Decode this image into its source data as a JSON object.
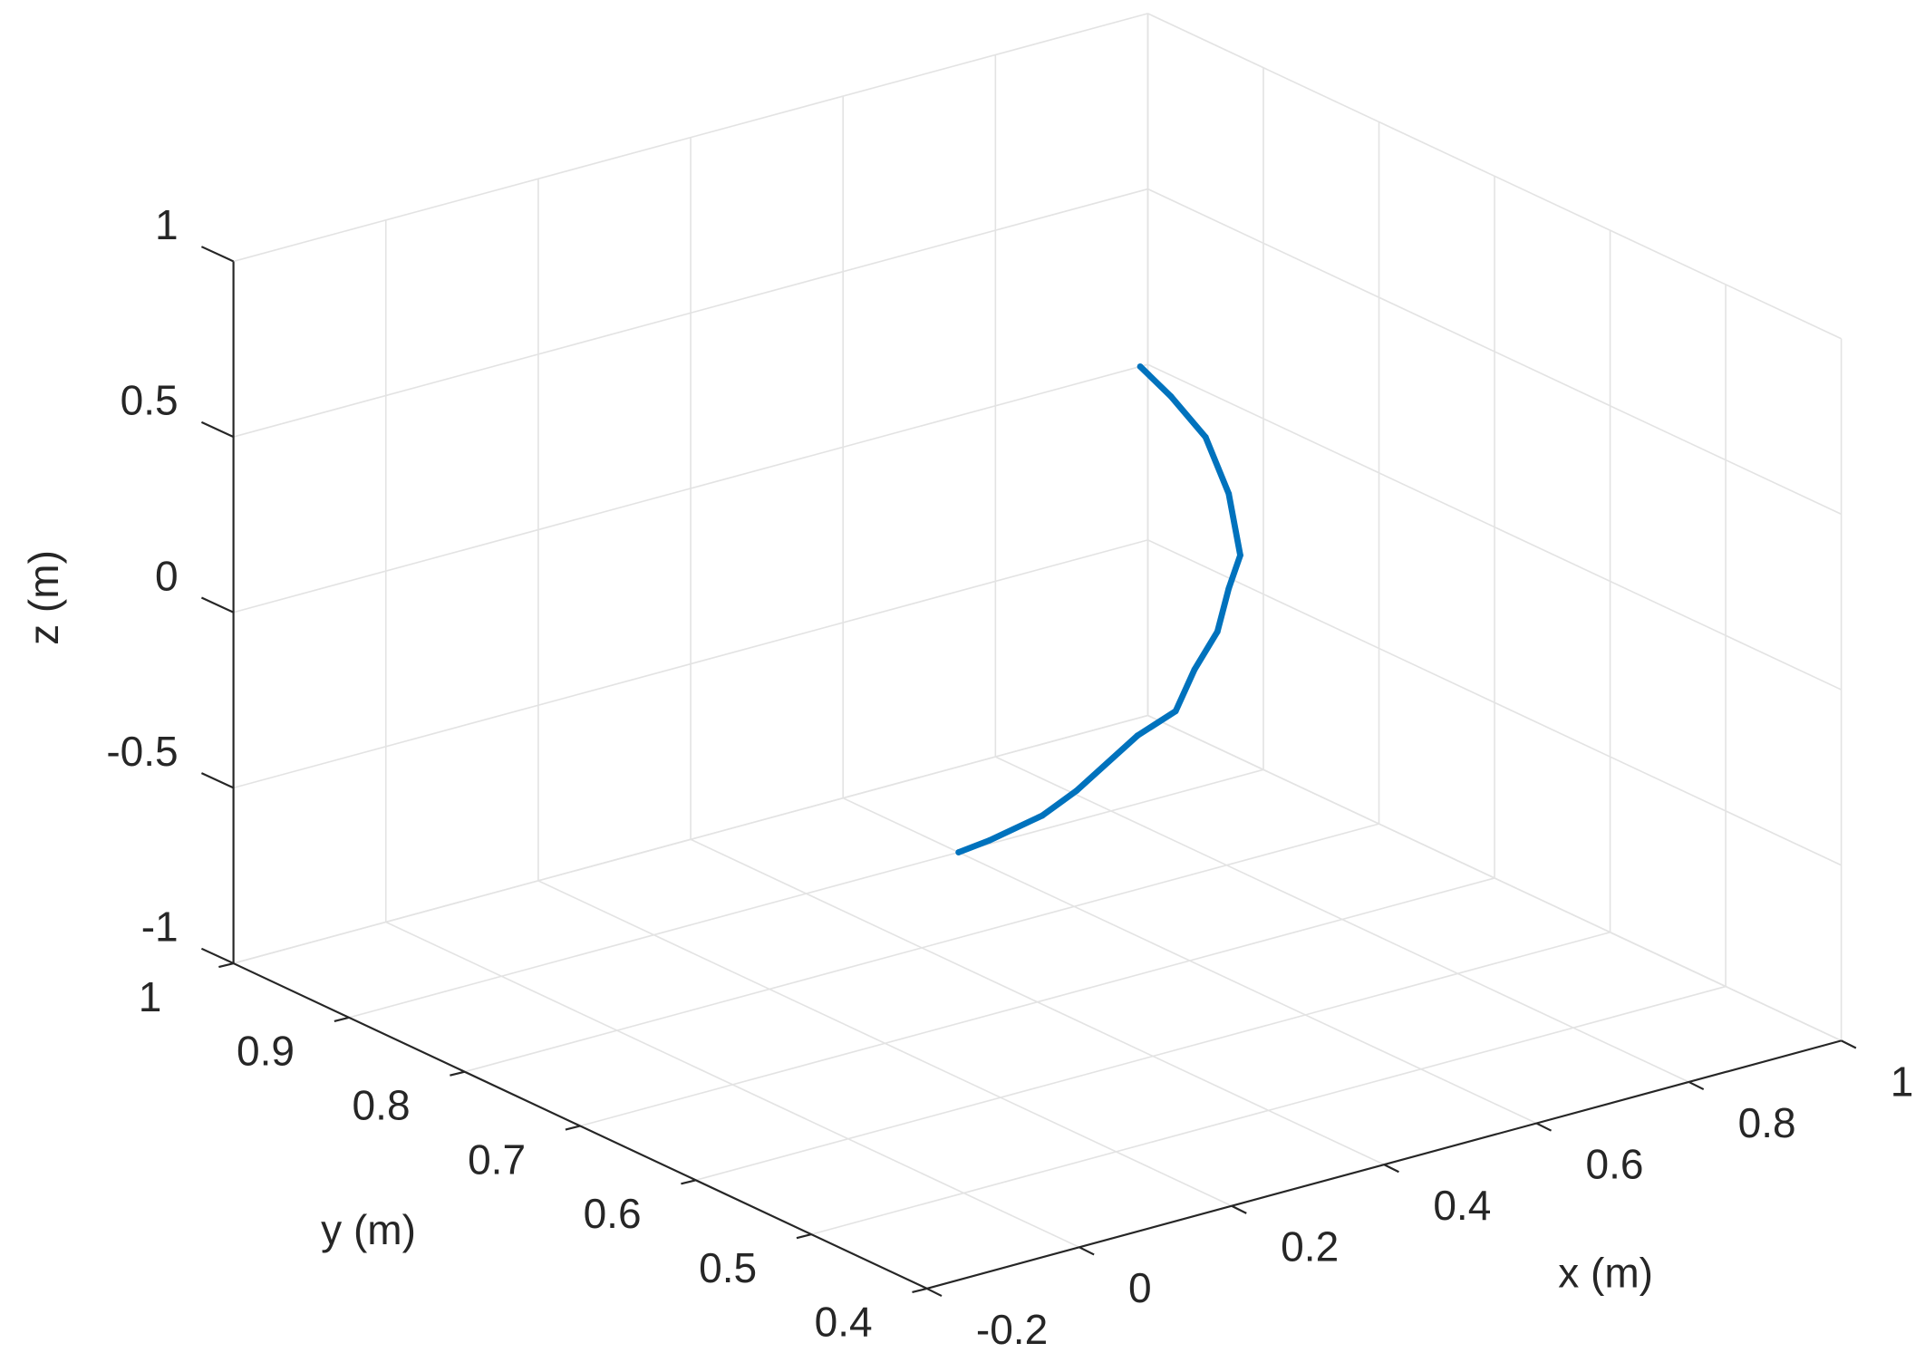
{
  "chart_data": {
    "type": "line3d",
    "x": [
      0.99,
      1,
      1,
      1,
      1,
      1,
      0.97,
      0.94,
      0.9,
      0.85,
      0.77,
      0.71,
      0.64,
      0.6
    ],
    "y": [
      1,
      0.98,
      0.95,
      0.93,
      0.92,
      0.93,
      0.92,
      0.92,
      0.91,
      0.91,
      0.91,
      0.9,
      0.9,
      0.9
    ],
    "z": [
      0,
      -0.06,
      -0.13,
      -0.26,
      -0.42,
      -0.53,
      -0.62,
      -0.71,
      -0.79,
      -0.83,
      -0.94,
      -0.96,
      -0.99,
      -1
    ],
    "color": "#0072bd",
    "xlabel": "x (m)",
    "ylabel": "y (m)",
    "zlabel": "z (m)",
    "xlim": [
      -0.2,
      1
    ],
    "ylim": [
      0.4,
      1
    ],
    "zlim": [
      -1,
      1
    ],
    "xticks": [
      -0.2,
      0,
      0.2,
      0.4,
      0.6,
      0.8,
      1
    ],
    "yticks": [
      0.4,
      0.5,
      0.6,
      0.7,
      0.8,
      0.9,
      1
    ],
    "zticks": [
      -1,
      -0.5,
      0,
      0.5,
      1
    ],
    "grid": true
  }
}
